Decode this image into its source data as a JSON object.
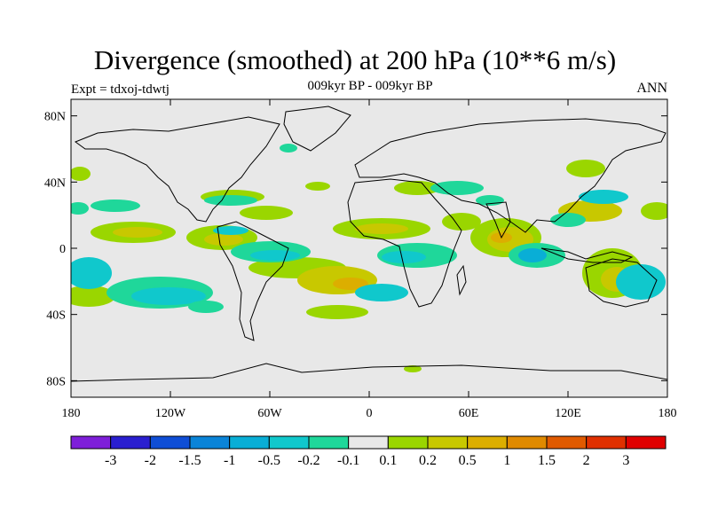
{
  "title": "Divergence (smoothed) at 200 hPa (10**6 m/s)",
  "experiment": "Expt = tdxoj-tdwtj",
  "subtitle": "009kyr BP - 009kyr BP",
  "season": "ANN",
  "map": {
    "projection": "cylindrical equidistant",
    "lon_range": [
      -180,
      180
    ],
    "lat_range": [
      -90,
      90
    ],
    "background_color": "#e8e8e8",
    "lat_ticks": [
      "80N",
      "40N",
      "0",
      "40S",
      "80S"
    ],
    "lon_ticks": [
      "180",
      "120W",
      "60W",
      "0",
      "60E",
      "120E",
      "180"
    ]
  },
  "colorbar": {
    "labels": [
      "-3",
      "-2",
      "-1.5",
      "-1",
      "-0.5",
      "-0.2",
      "-0.1",
      "0.1",
      "0.2",
      "0.5",
      "1",
      "1.5",
      "2",
      "3"
    ],
    "colors": [
      "#7e1fd9",
      "#2a1fd0",
      "#0f4ed6",
      "#0a84d8",
      "#09aed6",
      "#10c8cc",
      "#1fd79a",
      "#e8e8e8",
      "#9ad600",
      "#c8c800",
      "#dcae00",
      "#e08a00",
      "#e05a00",
      "#e03000",
      "#e00000"
    ]
  }
}
